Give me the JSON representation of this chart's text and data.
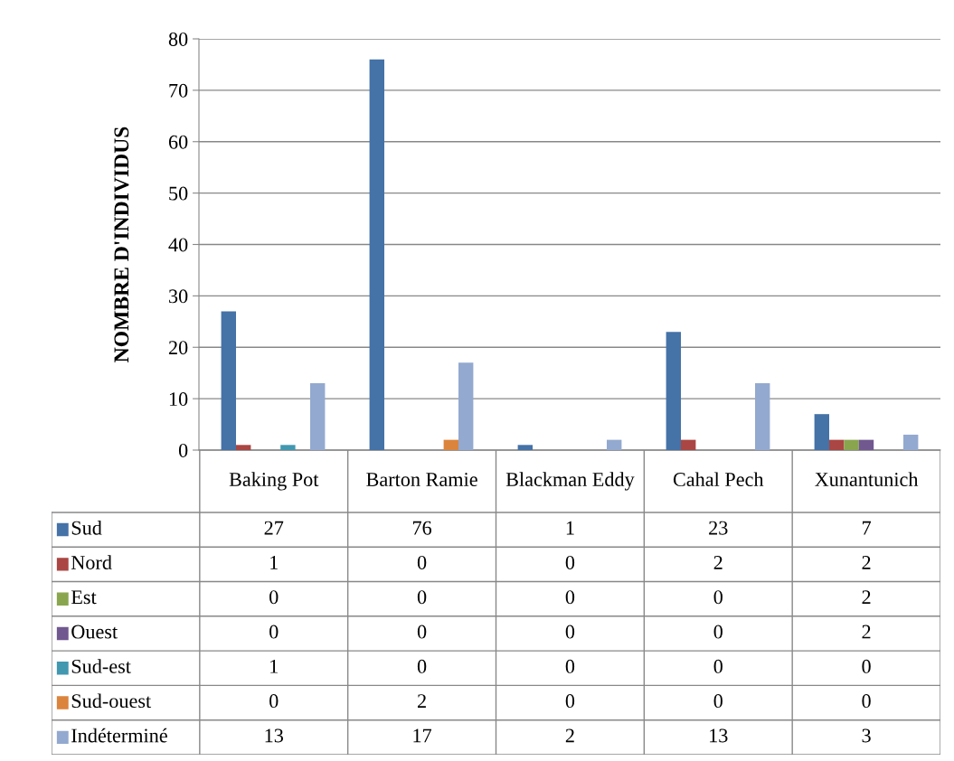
{
  "chart_data": {
    "type": "bar",
    "ylabel": "NOMBRE D'INDIVIDUS",
    "categories": [
      "Baking Pot",
      "Barton Ramie",
      "Blackman Eddy",
      "Cahal Pech",
      "Xunantunich"
    ],
    "series": [
      {
        "name": "Sud",
        "color": "#4572a7",
        "values": [
          27,
          76,
          1,
          23,
          7
        ]
      },
      {
        "name": "Nord",
        "color": "#aa4643",
        "values": [
          1,
          0,
          0,
          2,
          2
        ]
      },
      {
        "name": "Est",
        "color": "#89a54e",
        "values": [
          0,
          0,
          0,
          0,
          2
        ]
      },
      {
        "name": "Ouest",
        "color": "#71588f",
        "values": [
          0,
          0,
          0,
          0,
          2
        ]
      },
      {
        "name": "Sud-est",
        "color": "#4198af",
        "values": [
          1,
          0,
          0,
          0,
          0
        ]
      },
      {
        "name": "Sud-ouest",
        "color": "#db843d",
        "values": [
          0,
          2,
          0,
          0,
          0
        ]
      },
      {
        "name": "Indéterminé",
        "color": "#93a9cf",
        "values": [
          13,
          17,
          2,
          13,
          3
        ]
      }
    ],
    "ylim": [
      0,
      80
    ],
    "yticks": [
      0,
      10,
      20,
      30,
      40,
      50,
      60,
      70,
      80
    ],
    "grid": "y",
    "data_labels": true,
    "legend": "bottom left"
  }
}
